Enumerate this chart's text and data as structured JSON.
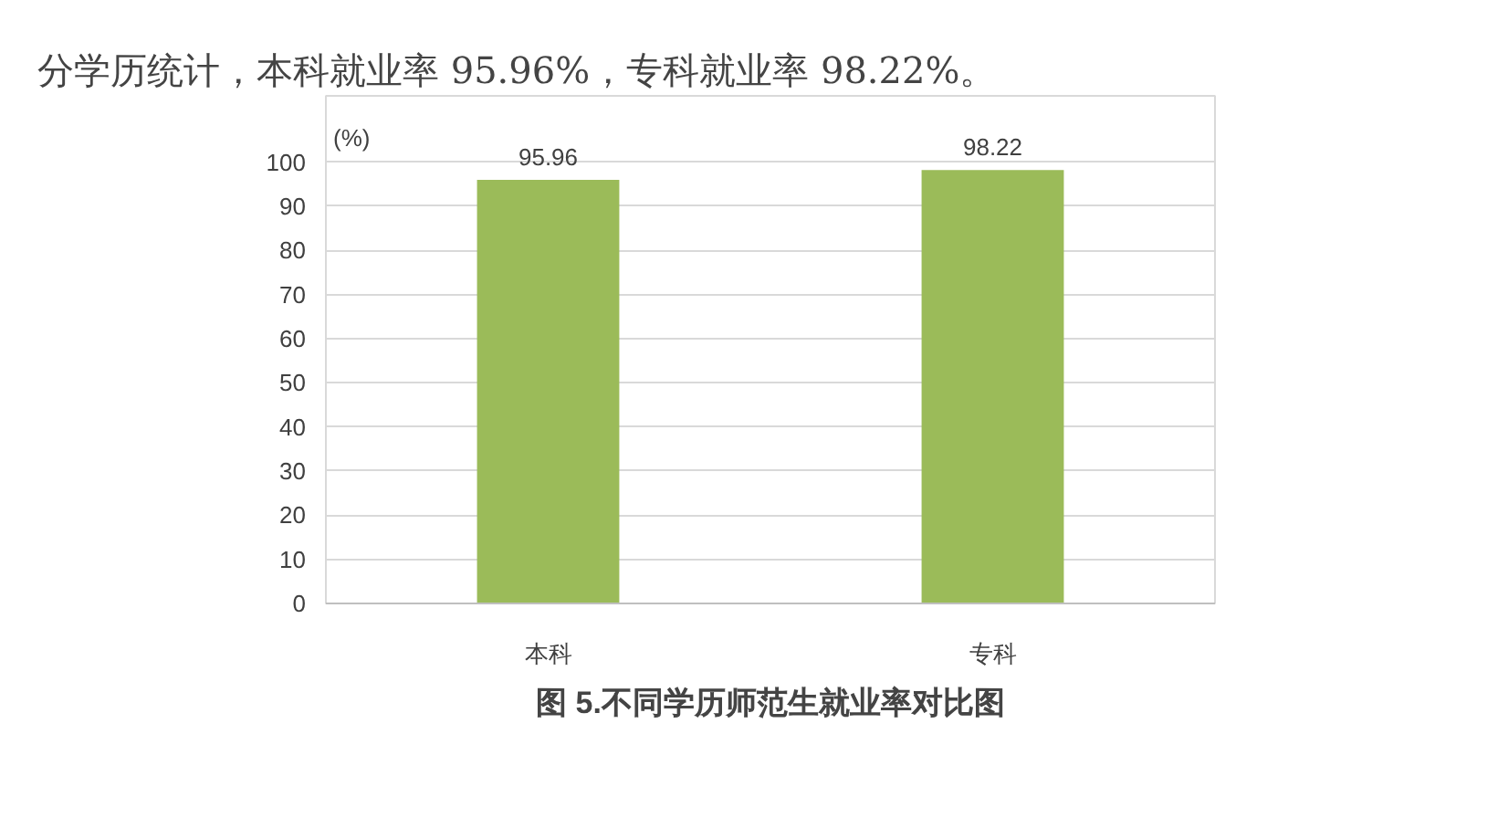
{
  "chart_data": {
    "type": "bar",
    "title": "图 5.不同学历师范生就业率对比图",
    "annotations": [
      "分学历统计，本科就业率 95.96%，专科就业率 98.22%。"
    ],
    "ylabel": "(%)",
    "categories": [
      "本科",
      "专科"
    ],
    "values": [
      95.96,
      98.22
    ],
    "color": "#9bbb59",
    "ylim": [
      0,
      115
    ],
    "yticks": [
      0,
      10,
      20,
      30,
      40,
      50,
      60,
      70,
      80,
      90,
      100
    ],
    "grid": "y",
    "data_labels": true
  }
}
